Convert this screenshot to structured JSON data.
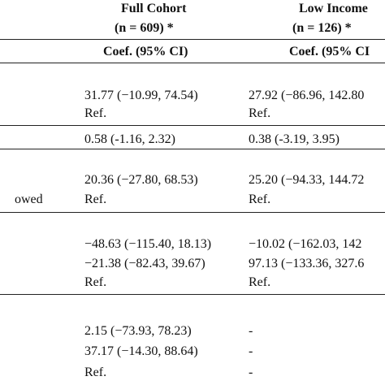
{
  "header": {
    "col1_title": "Full Cohort",
    "col1_n": "(n = 609) *",
    "col2_title": "Low Income",
    "col2_n": "(n = 126) *",
    "col1_coef": "Coef. (95% CI)",
    "col2_coef": "Coef. (95% CI"
  },
  "row_labels": {
    "owed": "owed"
  },
  "groups": [
    {
      "rows": [
        {
          "c1": "31.77 (−10.99, 74.54)",
          "c2": "27.92 (−86.96, 142.80"
        },
        {
          "c1": "Ref.",
          "c2": "Ref."
        }
      ]
    },
    {
      "rows": [
        {
          "c1": "0.58 (-1.16, 2.32)",
          "c2": "0.38 (-3.19, 3.95)"
        }
      ]
    },
    {
      "rows": [
        {
          "c1": "20.36 (−27.80, 68.53)",
          "c2": "25.20 (−94.33, 144.72"
        },
        {
          "c1": "Ref.",
          "c2": "Ref."
        }
      ]
    },
    {
      "rows": [
        {
          "c1": "−48.63 (−115.40, 18.13)",
          "c2": "−10.02 (−162.03, 142"
        },
        {
          "c1": "−21.38 (−82.43, 39.67)",
          "c2": "97.13 (−133.36, 327.6"
        },
        {
          "c1": "Ref.",
          "c2": "Ref."
        }
      ]
    },
    {
      "rows": [
        {
          "c1": "2.15 (−73.93, 78.23)",
          "c2": "-"
        },
        {
          "c1": "37.17 (−14.30, 88.64)",
          "c2": "-"
        },
        {
          "c1": "Ref.",
          "c2": "-"
        }
      ]
    }
  ]
}
